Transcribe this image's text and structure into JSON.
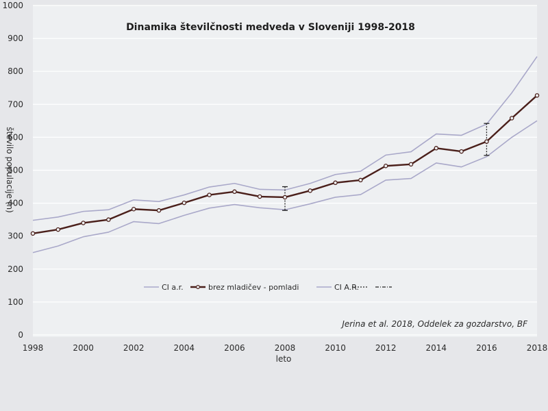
{
  "colors": {
    "background": "#e6e7ea",
    "plot_area": "#eef0f2",
    "grid": "#ffffff",
    "ci_lines": "#a9a8c9",
    "main_line": "#4a1f1a",
    "text": "#2a2a2a"
  },
  "chart_data": {
    "type": "line",
    "title": "Dinamika številčnosti medveda v Sloveniji 1998-2018",
    "xlabel": "leto",
    "ylabel": "število populacije (n)",
    "ylim": [
      0,
      1000
    ],
    "yticks": [
      0,
      100,
      200,
      300,
      400,
      500,
      600,
      700,
      800,
      900,
      1000
    ],
    "xticks": [
      1998,
      2000,
      2002,
      2004,
      2006,
      2008,
      2010,
      2012,
      2014,
      2016,
      2018
    ],
    "xlim": [
      1998,
      2018
    ],
    "grid": true,
    "legend_position": "bottom-center",
    "x": [
      1998,
      1999,
      2000,
      2001,
      2002,
      2003,
      2004,
      2005,
      2006,
      2007,
      2008,
      2009,
      2010,
      2011,
      2012,
      2013,
      2014,
      2015,
      2016,
      2017,
      2018
    ],
    "series": [
      {
        "name": "CI a.r.",
        "role": "ci",
        "values": [
          250,
          270,
          298,
          312,
          344,
          338,
          363,
          385,
          396,
          386,
          380,
          398,
          418,
          426,
          470,
          475,
          522,
          510,
          541,
          600,
          650
        ]
      },
      {
        "name": "brez mladičev - pomladi",
        "role": "main",
        "values": [
          308,
          320,
          340,
          350,
          382,
          378,
          401,
          425,
          435,
          420,
          418,
          438,
          462,
          470,
          513,
          518,
          567,
          557,
          587,
          658,
          727
        ]
      },
      {
        "name": "CI A.R.",
        "role": "ci",
        "values": [
          348,
          358,
          375,
          380,
          410,
          405,
          425,
          449,
          460,
          442,
          440,
          460,
          487,
          497,
          546,
          556,
          610,
          606,
          640,
          735,
          845
        ]
      }
    ],
    "error_bars": [
      {
        "x": 2008,
        "low": 378,
        "high": 450
      },
      {
        "x": 2016,
        "low": 545,
        "high": 642
      }
    ],
    "legend_extra": [
      {
        "label": "",
        "style": "dotted"
      },
      {
        "label": "",
        "style": "dash-dot"
      }
    ],
    "annotation": "Jerina et al. 2018, Oddelek za gozdarstvo, BF"
  }
}
